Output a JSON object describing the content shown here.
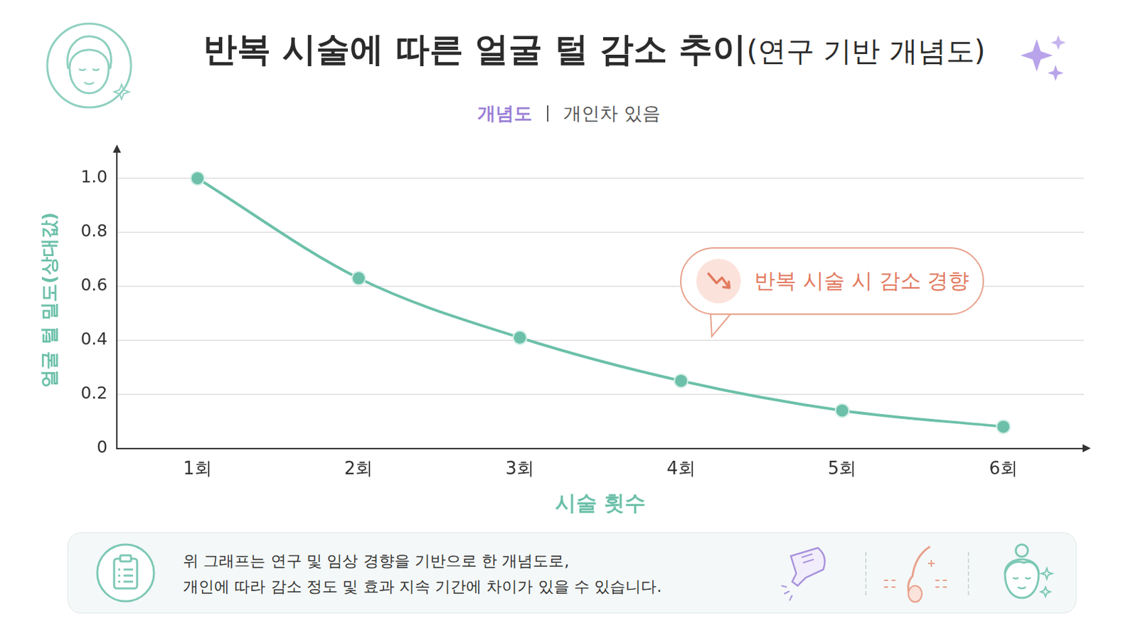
{
  "chart_data": {
    "type": "line",
    "title": "반복 시술에 따른 얼굴 털 감소 추이(연구 기반 개념도)",
    "subtitle": [
      "개념도",
      "개인차 있음"
    ],
    "x_label": "시술 횟수",
    "y_label": "얼굴 털 밀도(상대값)",
    "categories": [
      "1회",
      "2회",
      "3회",
      "4회",
      "5회",
      "6회"
    ],
    "values": [
      1.0,
      0.63,
      0.41,
      0.25,
      0.14,
      0.08
    ],
    "color": "#6cc0a9",
    "marker": "circle",
    "line_style": "solid",
    "ylim": [
      0,
      1.1
    ],
    "yticks": [
      0,
      0.2,
      0.4,
      0.6,
      0.8,
      {
        "value": 1,
        "label": "1.0"
      }
    ],
    "grid": true,
    "annotations": [
      {
        "text": "반복 시술 시 감소 경향"
      }
    ],
    "footnote": [
      "위 그래프는 연구 및 임상 경향을 기반으로 한 개념도로,",
      "개인에 따라 감소 정도 및 효과 지속 기간에 차이가 있을 수 있습니다."
    ]
  }
}
